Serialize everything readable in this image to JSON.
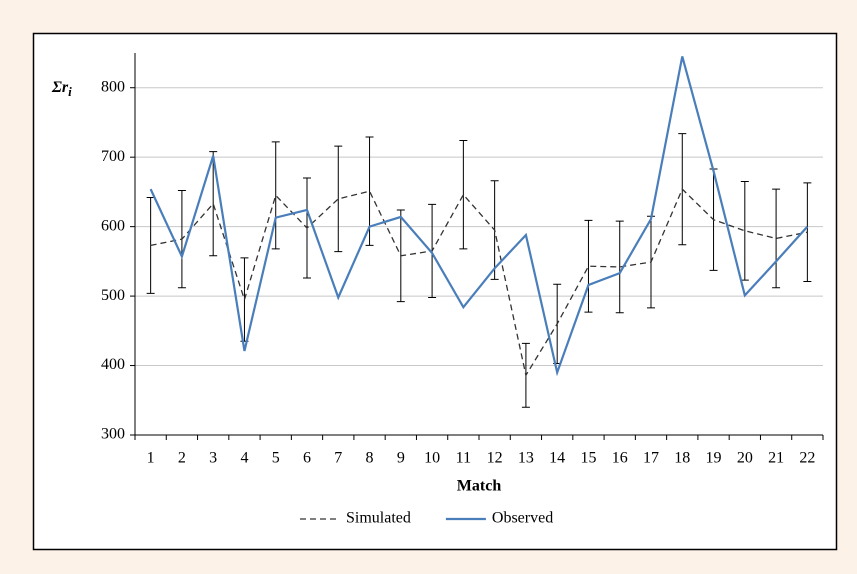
{
  "chart_data": {
    "type": "line",
    "x_label": "Match",
    "y_label": {
      "main": "Σr",
      "subscript": "i"
    },
    "categories": [
      "1",
      "2",
      "3",
      "4",
      "5",
      "6",
      "7",
      "8",
      "9",
      "10",
      "11",
      "12",
      "13",
      "14",
      "15",
      "16",
      "17",
      "18",
      "19",
      "20",
      "21",
      "22"
    ],
    "series": [
      {
        "name": "Simulated",
        "color": "#333333",
        "dashed": true,
        "values": [
          573,
          582,
          633,
          495,
          645,
          598,
          640,
          651,
          558,
          565,
          646,
          595,
          386,
          460,
          543,
          542,
          549,
          654,
          610,
          594,
          583,
          592
        ],
        "errors": [
          69,
          70,
          75,
          60,
          77,
          72,
          76,
          78,
          66,
          67,
          78,
          71,
          46,
          57,
          66,
          66,
          66,
          80,
          73,
          71,
          71,
          71
        ]
      },
      {
        "name": "Observed",
        "color": "#4a7ebb",
        "dashed": false,
        "values": [
          654,
          557,
          702,
          421,
          613,
          624,
          498,
          600,
          614,
          562,
          484,
          540,
          588,
          390,
          516,
          533,
          611,
          845,
          680,
          501,
          550,
          600
        ]
      }
    ],
    "ylim": [
      300,
      850
    ],
    "yticks": [
      300,
      400,
      500,
      600,
      700,
      800
    ],
    "grid": true,
    "legend": "bottom"
  }
}
